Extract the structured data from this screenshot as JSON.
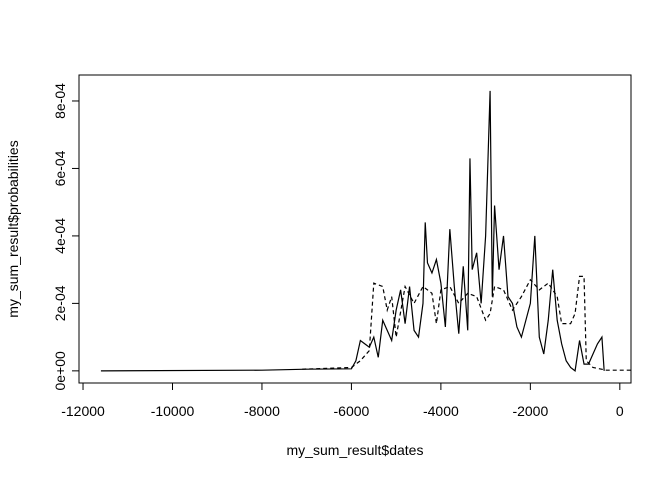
{
  "chart_data": {
    "type": "line",
    "xlabel": "my_sum_result$dates",
    "ylabel": "my_sum_result$probabilities",
    "xlim": [
      -12090,
      250
    ],
    "ylim": [
      -3.6e-05,
      0.000877
    ],
    "xticks": [
      -12000,
      -10000,
      -8000,
      -6000,
      -4000,
      -2000,
      0
    ],
    "yticks": [
      {
        "value": 0,
        "label": "0e+00"
      },
      {
        "value": 0.0002,
        "label": "2e-04"
      },
      {
        "value": 0.0004,
        "label": "4e-04"
      },
      {
        "value": 0.0006,
        "label": "6e-04"
      },
      {
        "value": 0.0008,
        "label": "8e-04"
      }
    ],
    "series": [
      {
        "color": "#000000",
        "linestyle": "solid",
        "x": [
          -11600,
          -8000,
          -7000,
          -6000,
          -5900,
          -5800,
          -5700,
          -5600,
          -5500,
          -5400,
          -5300,
          -5200,
          -5100,
          -5000,
          -4900,
          -4800,
          -4700,
          -4600,
          -4500,
          -4400,
          -4350,
          -4300,
          -4200,
          -4100,
          -4000,
          -3900,
          -3800,
          -3700,
          -3600,
          -3500,
          -3400,
          -3350,
          -3300,
          -3200,
          -3100,
          -3000,
          -2900,
          -2850,
          -2800,
          -2700,
          -2600,
          -2500,
          -2400,
          -2300,
          -2200,
          -2100,
          -2000,
          -1900,
          -1800,
          -1700,
          -1600,
          -1500,
          -1400,
          -1300,
          -1200,
          -1100,
          -1000,
          -900,
          -800,
          -700,
          -600,
          -500,
          -400,
          -350
        ],
        "values": [
          0,
          2e-06,
          5e-06,
          6e-06,
          3e-05,
          9e-05,
          8e-05,
          7e-05,
          0.0001,
          4e-05,
          0.00015,
          0.00012,
          9e-05,
          0.00018,
          0.00024,
          0.00014,
          0.00025,
          0.00012,
          0.0001,
          0.0002,
          0.00044,
          0.00032,
          0.00029,
          0.00033,
          0.00026,
          0.00013,
          0.00042,
          0.00025,
          0.00011,
          0.00031,
          0.00012,
          0.00063,
          0.0003,
          0.00035,
          0.0002,
          0.0004,
          0.00083,
          0.00022,
          0.00049,
          0.0003,
          0.0004,
          0.00022,
          0.0002,
          0.00013,
          0.0001,
          0.00015,
          0.0002,
          0.0004,
          0.0001,
          5e-05,
          0.00015,
          0.0003,
          0.00015,
          8e-05,
          3e-05,
          1e-05,
          0,
          9e-05,
          2e-05,
          2e-05,
          5e-05,
          8e-05,
          0.0001,
          0
        ]
      },
      {
        "color": "#000000",
        "linestyle": "dashed",
        "x": [
          -7100,
          -6000,
          -5800,
          -5600,
          -5500,
          -5300,
          -5200,
          -5100,
          -5000,
          -4800,
          -4600,
          -4400,
          -4300,
          -4200,
          -4100,
          -4000,
          -3800,
          -3600,
          -3400,
          -3200,
          -3000,
          -2900,
          -2800,
          -2600,
          -2400,
          -2200,
          -2000,
          -1800,
          -1600,
          -1400,
          -1300,
          -1100,
          -1000,
          -900,
          -800,
          -750,
          -600,
          -300,
          250
        ],
        "values": [
          5e-06,
          1e-05,
          3e-05,
          6e-05,
          0.00026,
          0.00025,
          0.00018,
          0.00022,
          0.0001,
          0.00025,
          0.0002,
          0.00025,
          0.00024,
          0.00023,
          0.00014,
          0.00024,
          0.00025,
          0.0002,
          0.00023,
          0.00022,
          0.00015,
          0.00017,
          0.00025,
          0.00024,
          0.00018,
          0.00022,
          0.00027,
          0.00024,
          0.00026,
          0.00022,
          0.00014,
          0.00014,
          0.00017,
          0.00028,
          0.00028,
          3e-05,
          1e-05,
          2e-06,
          2e-06
        ]
      }
    ]
  }
}
